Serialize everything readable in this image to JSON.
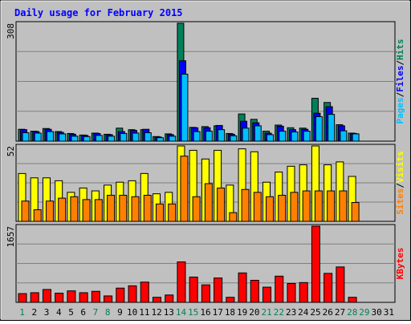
{
  "chart_data": [
    {
      "type": "bar",
      "title": "Daily usage for February 2015",
      "ymax": 308,
      "ylabel": "Pages / Files / Hits",
      "categories": [
        "1",
        "2",
        "3",
        "4",
        "5",
        "6",
        "7",
        "8",
        "9",
        "10",
        "11",
        "12",
        "13",
        "14",
        "15",
        "16",
        "17",
        "18",
        "19",
        "20",
        "21",
        "22",
        "23",
        "24",
        "25",
        "26",
        "27",
        "28",
        "29",
        "30",
        "31"
      ],
      "series": [
        {
          "name": "Hits",
          "color": "#00805a",
          "values": [
            31,
            26,
            33,
            25,
            20,
            16,
            21,
            18,
            34,
            30,
            30,
            12,
            19,
            308,
            36,
            38,
            40,
            20,
            71,
            57,
            26,
            42,
            35,
            34,
            112,
            101,
            43,
            21,
            0,
            0,
            0
          ]
        },
        {
          "name": "Files",
          "color": "#0000ff",
          "values": [
            30,
            25,
            31,
            23,
            18,
            15,
            20,
            17,
            25,
            28,
            31,
            11,
            17,
            210,
            35,
            35,
            41,
            18,
            52,
            48,
            21,
            39,
            30,
            31,
            73,
            90,
            40,
            20,
            0,
            0,
            0
          ]
        },
        {
          "name": "Pages",
          "color": "#00bfff",
          "values": [
            22,
            21,
            25,
            19,
            13,
            12,
            15,
            13,
            20,
            21,
            22,
            9,
            13,
            175,
            25,
            26,
            30,
            14,
            34,
            40,
            17,
            26,
            24,
            26,
            64,
            70,
            27,
            19,
            0,
            0,
            0
          ]
        }
      ]
    },
    {
      "type": "bar",
      "ymax": 52,
      "ylabel": "Sites / Visits",
      "categories": [
        "1",
        "2",
        "3",
        "4",
        "5",
        "6",
        "7",
        "8",
        "9",
        "10",
        "11",
        "12",
        "13",
        "14",
        "15",
        "16",
        "17",
        "18",
        "19",
        "20",
        "21",
        "22",
        "23",
        "24",
        "25",
        "26",
        "27",
        "28",
        "29",
        "30",
        "31"
      ],
      "series": [
        {
          "name": "Visits",
          "color": "#ffff00",
          "values": [
            33,
            30,
            30,
            28,
            20,
            23,
            21,
            25,
            27,
            28,
            33,
            19,
            20,
            52,
            49,
            43,
            49,
            25,
            50,
            48,
            27,
            34,
            38,
            39,
            52,
            39,
            41,
            31,
            0,
            0,
            0
          ]
        },
        {
          "name": "Sites",
          "color": "#ff8000",
          "values": [
            14,
            8,
            14,
            16,
            17,
            15,
            15,
            18,
            18,
            17,
            18,
            12,
            12,
            45,
            17,
            26,
            23,
            6,
            22,
            20,
            17,
            18,
            20,
            21,
            21,
            21,
            21,
            13,
            0,
            0,
            0
          ]
        }
      ]
    },
    {
      "type": "bar",
      "ymax": 1657,
      "ylabel": "KBytes",
      "categories": [
        "1",
        "2",
        "3",
        "4",
        "5",
        "6",
        "7",
        "8",
        "9",
        "10",
        "11",
        "12",
        "13",
        "14",
        "15",
        "16",
        "17",
        "18",
        "19",
        "20",
        "21",
        "22",
        "23",
        "24",
        "25",
        "26",
        "27",
        "28",
        "29",
        "30",
        "31"
      ],
      "series": [
        {
          "name": "KBytes",
          "color": "#ff0000",
          "values": [
            190,
            210,
            280,
            200,
            250,
            210,
            240,
            140,
            310,
            360,
            440,
            110,
            160,
            880,
            550,
            380,
            530,
            110,
            640,
            480,
            330,
            570,
            410,
            430,
            1657,
            630,
            770,
            110,
            0,
            0,
            0
          ]
        }
      ]
    }
  ],
  "weekend_days": [
    "1",
    "7",
    "8",
    "14",
    "15",
    "21",
    "22",
    "28",
    "29"
  ],
  "colors": {
    "weekday_label": "#000000",
    "weekend_label": "#00805a",
    "title": "#0000ff"
  }
}
